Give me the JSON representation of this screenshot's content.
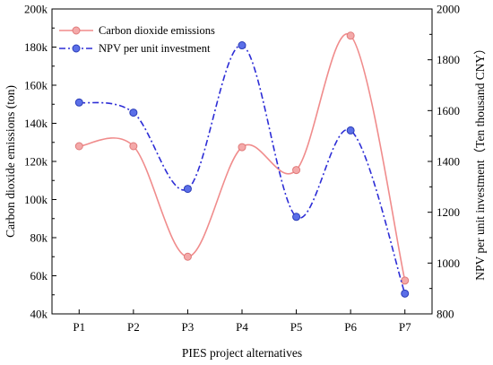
{
  "chart_data": {
    "type": "line",
    "categories": [
      "P1",
      "P2",
      "P3",
      "P4",
      "P5",
      "P6",
      "P7"
    ],
    "xlabel": "PIES project alternatives",
    "ylabel_left": "Carbon dioxide emissions (ton)",
    "ylabel_right": "NPV per unit investment（Ten thousand CNY）",
    "ylim_left": [
      40000,
      200000
    ],
    "ylim_right": [
      800,
      2000
    ],
    "yticks_left": [
      "40k",
      "60k",
      "80k",
      "100k",
      "120k",
      "140k",
      "160k",
      "180k",
      "200k"
    ],
    "yticks_right": [
      "800",
      "1000",
      "1200",
      "1400",
      "1600",
      "1800",
      "2000"
    ],
    "grid": false,
    "legend_position": "top-left",
    "series": [
      {
        "name": "Carbon dioxide emissions",
        "axis": "left",
        "color": "#f08c8c",
        "marker_color": "#f4a9a9",
        "line_style": "solid",
        "smooth": true,
        "values": [
          128000,
          128000,
          70000,
          127500,
          115500,
          186000,
          57500
        ]
      },
      {
        "name": "NPV per unit investment",
        "axis": "right",
        "color": "#2d2dd6",
        "marker_color": "#5b6fe8",
        "line_style": "dash-dot",
        "smooth": true,
        "values": [
          1632,
          1592,
          1292,
          1857,
          1182,
          1522,
          880
        ]
      }
    ]
  }
}
